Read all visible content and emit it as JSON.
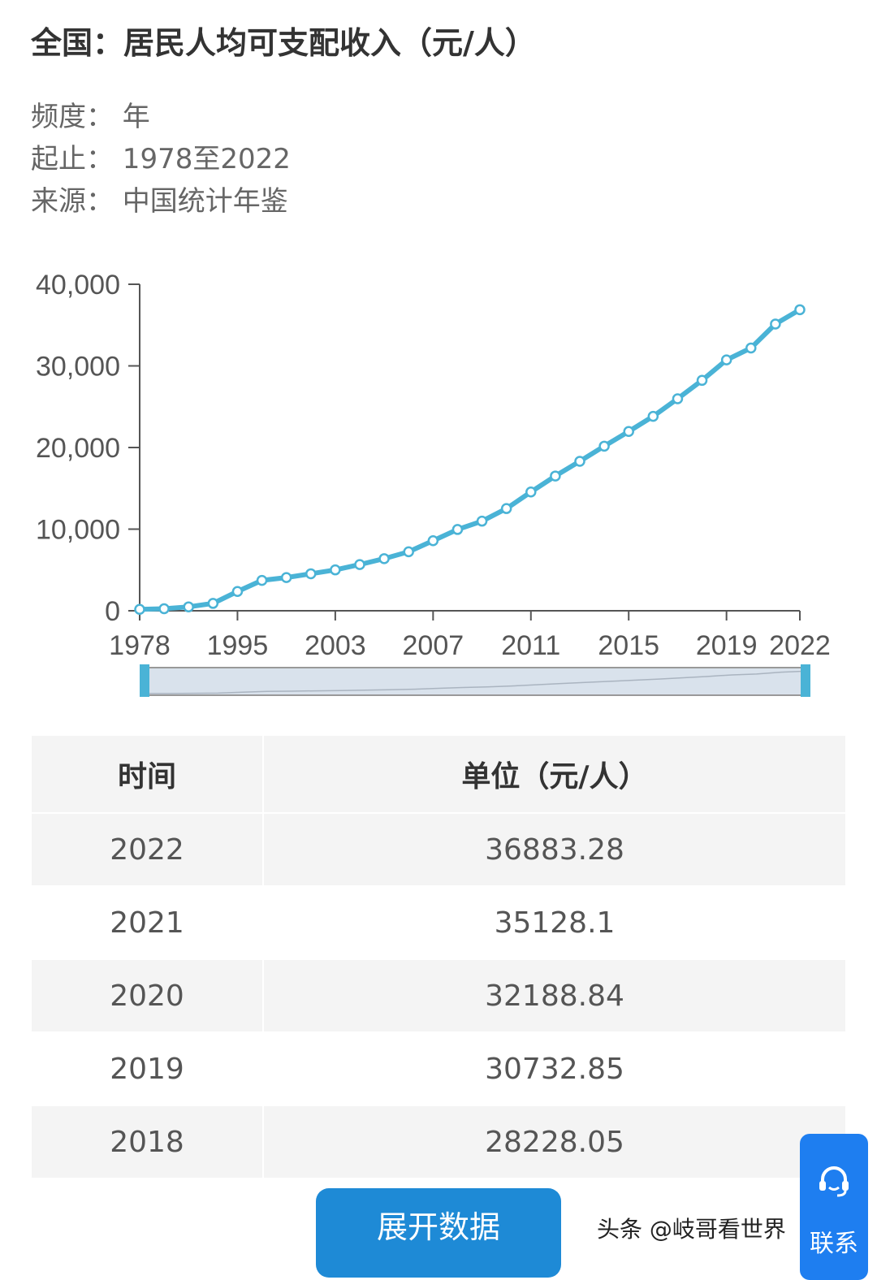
{
  "header": {
    "title": "全国：居民人均可支配收入（元/人）",
    "frequency": "频度：  年",
    "range": "起止：  1978至2022",
    "source": "来源：  中国统计年鉴"
  },
  "chart_data": {
    "type": "line",
    "title": "",
    "xlabel": "",
    "ylabel": "",
    "ylim": [
      0,
      40000
    ],
    "y_ticks": [
      "0",
      "10,000",
      "20,000",
      "30,000",
      "40,000"
    ],
    "x_tick_labels": [
      "1978",
      "1995",
      "2003",
      "2007",
      "2011",
      "2015",
      "2019",
      "2022"
    ],
    "x": [
      "1978",
      "1980",
      "1985",
      "1990",
      "1995",
      "2000",
      "2001",
      "2002",
      "2003",
      "2004",
      "2005",
      "2006",
      "2007",
      "2008",
      "2009",
      "2010",
      "2011",
      "2012",
      "2013",
      "2014",
      "2015",
      "2016",
      "2017",
      "2018",
      "2019",
      "2020",
      "2021",
      "2022"
    ],
    "values": [
      171,
      247,
      478,
      904,
      2363,
      3721,
      4070,
      4532,
      5007,
      5661,
      6385,
      7229,
      8584,
      9957,
      10977,
      12520,
      14551,
      16510,
      18311,
      20167,
      21966,
      23821,
      25974,
      28228,
      30733,
      32189,
      35128,
      36883
    ],
    "color": "#4ab3d6",
    "grid": false,
    "data_zoom": true
  },
  "table": {
    "headers": [
      "时间",
      "单位（元/人）"
    ],
    "rows": [
      [
        "2022",
        "36883.28"
      ],
      [
        "2021",
        "35128.1"
      ],
      [
        "2020",
        "32188.84"
      ],
      [
        "2019",
        "30732.85"
      ],
      [
        "2018",
        "28228.05"
      ]
    ]
  },
  "expand_button": "展开数据",
  "float_button": "联系",
  "watermark": "头条 @岐哥看世界"
}
